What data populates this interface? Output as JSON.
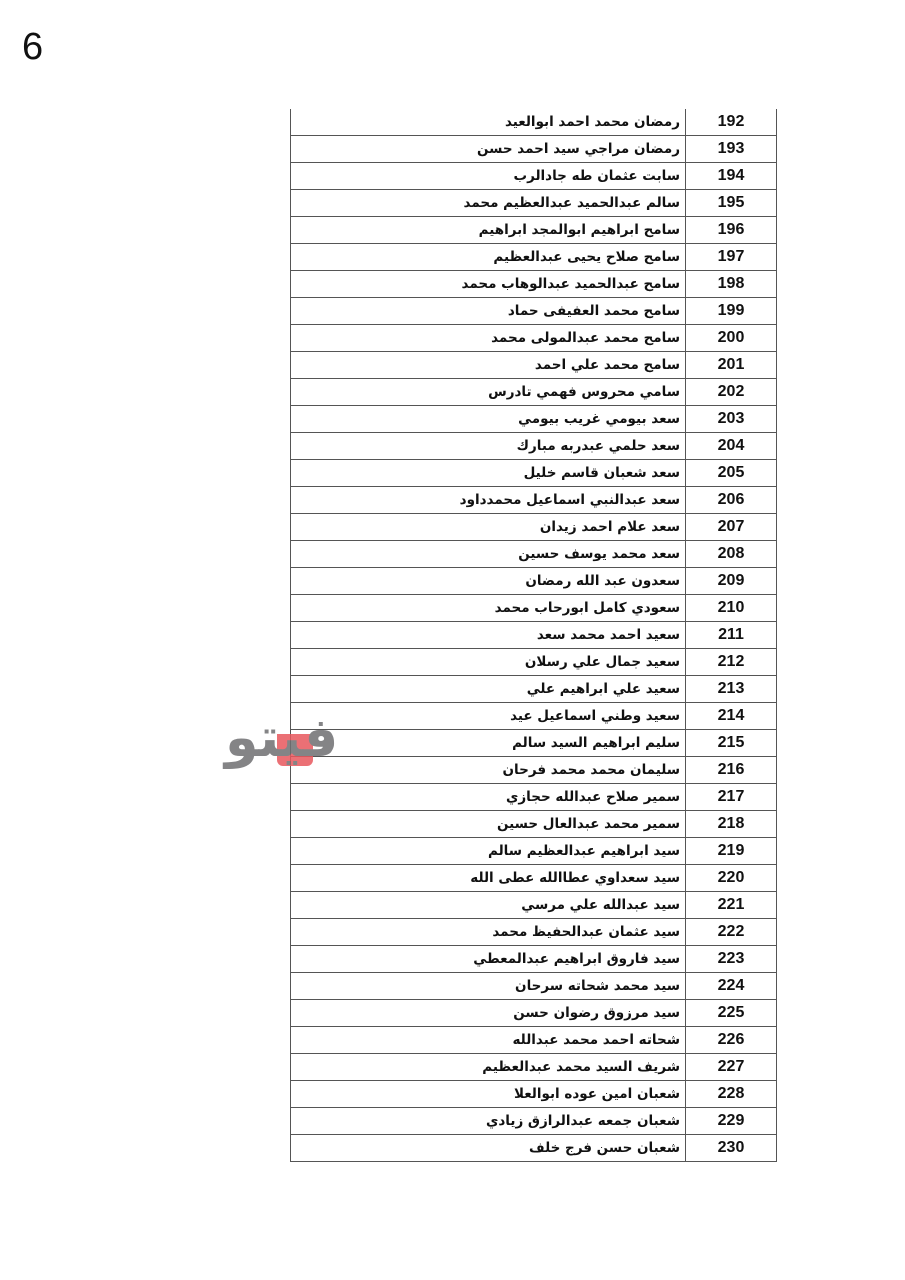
{
  "page_number": "6",
  "watermark": {
    "text": "فيتو",
    "colors": {
      "gray": "#6f6f72",
      "red": "#e8585e"
    }
  },
  "rows": [
    {
      "num": "192",
      "name": "رمضان محمد احمد ابوالعيد"
    },
    {
      "num": "193",
      "name": "رمضان مراجي سيد احمد حسن"
    },
    {
      "num": "194",
      "name": "سابت عثمان طه جادالرب"
    },
    {
      "num": "195",
      "name": "سالم عبدالحميد عبدالعظيم محمد"
    },
    {
      "num": "196",
      "name": "سامح ابراهيم ابوالمجد ابراهيم"
    },
    {
      "num": "197",
      "name": "سامح صلاح يحيى عبدالعظيم"
    },
    {
      "num": "198",
      "name": "سامح عبدالحميد عبدالوهاب محمد"
    },
    {
      "num": "199",
      "name": "سامح محمد العفيفى حماد"
    },
    {
      "num": "200",
      "name": "سامح محمد عبدالمولى محمد"
    },
    {
      "num": "201",
      "name": "سامح محمد علي احمد"
    },
    {
      "num": "202",
      "name": "سامي محروس فهمي تادرس"
    },
    {
      "num": "203",
      "name": "سعد بيومي غريب بيومي"
    },
    {
      "num": "204",
      "name": "سعد حلمي عبدربه مبارك"
    },
    {
      "num": "205",
      "name": "سعد شعبان قاسم خليل"
    },
    {
      "num": "206",
      "name": "سعد عبدالنبي اسماعيل محمدداود"
    },
    {
      "num": "207",
      "name": "سعد علام احمد زيدان"
    },
    {
      "num": "208",
      "name": "سعد محمد يوسف حسين"
    },
    {
      "num": "209",
      "name": "سعدون عبد الله  رمضان"
    },
    {
      "num": "210",
      "name": "سعودي كامل ابورحاب محمد"
    },
    {
      "num": "211",
      "name": "سعيد احمد محمد سعد"
    },
    {
      "num": "212",
      "name": "سعيد جمال علي رسلان"
    },
    {
      "num": "213",
      "name": "سعيد علي ابراهيم علي"
    },
    {
      "num": "214",
      "name": "سعيد وطني اسماعيل عيد"
    },
    {
      "num": "215",
      "name": "سليم ابراهيم السيد سالم"
    },
    {
      "num": "216",
      "name": "سليمان محمد محمد فرحان"
    },
    {
      "num": "217",
      "name": "سمير صلاح عبدالله حجازي"
    },
    {
      "num": "218",
      "name": "سمير محمد عبدالعال حسين"
    },
    {
      "num": "219",
      "name": "سيد ابراهيم عبدالعظيم سالم"
    },
    {
      "num": "220",
      "name": "سيد سعداوي عطاالله عطى الله"
    },
    {
      "num": "221",
      "name": "سيد عبدالله علي مرسي"
    },
    {
      "num": "222",
      "name": "سيد عثمان عبدالحفيظ محمد"
    },
    {
      "num": "223",
      "name": "سيد فاروق ابراهيم عبدالمعطي"
    },
    {
      "num": "224",
      "name": "سيد محمد شحاته سرحان"
    },
    {
      "num": "225",
      "name": "سيد مرزوق رضوان حسن"
    },
    {
      "num": "226",
      "name": "شحاته احمد محمد عبدالله"
    },
    {
      "num": "227",
      "name": "شريف السيد محمد عبدالعظيم"
    },
    {
      "num": "228",
      "name": "شعبان امين عوده ابوالعلا"
    },
    {
      "num": "229",
      "name": "شعبان جمعه عبدالرازق زيادي"
    },
    {
      "num": "230",
      "name": "شعبان حسن فرج خلف"
    }
  ]
}
